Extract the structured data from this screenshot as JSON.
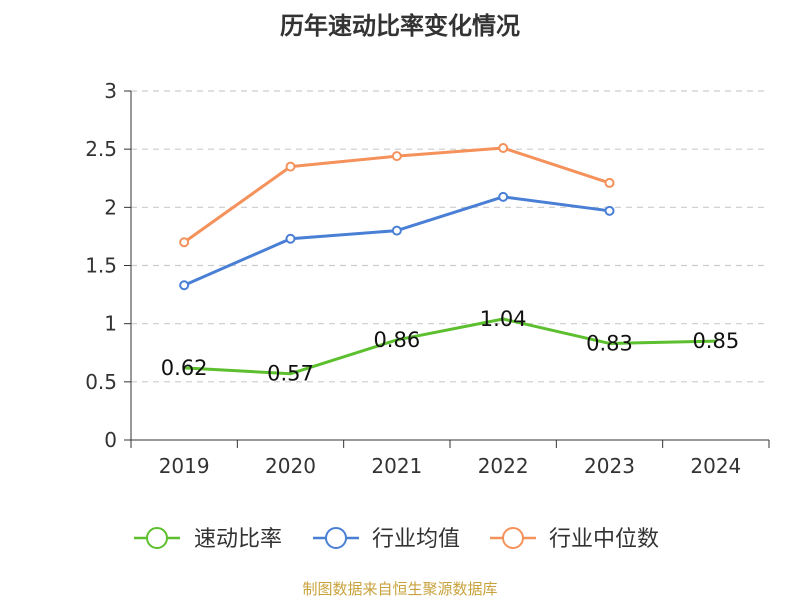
{
  "chart_data": {
    "type": "line",
    "title": "历年速动比率变化情况",
    "categories": [
      "2019",
      "2020",
      "2021",
      "2022",
      "2023",
      "2024"
    ],
    "ylim": [
      0,
      3
    ],
    "yticks": [
      "0",
      "0.5",
      "1",
      "1.5",
      "2",
      "2.5",
      "3"
    ],
    "grid": "horizontal dashed",
    "legend_position": "bottom",
    "series": [
      {
        "name": "速动比率",
        "values": [
          0.62,
          0.57,
          0.86,
          1.04,
          0.83,
          0.85
        ],
        "color": "#5cbf2e",
        "labels": [
          "0.62",
          "0.57",
          "0.86",
          "1.04",
          "0.83",
          "0.85"
        ]
      },
      {
        "name": "行业均值",
        "values": [
          1.33,
          1.73,
          1.8,
          2.09,
          1.97,
          null
        ],
        "color": "#4a7fd6"
      },
      {
        "name": "行业中位数",
        "values": [
          1.7,
          2.35,
          2.44,
          2.51,
          2.21,
          null
        ],
        "color": "#f5915a"
      }
    ]
  },
  "footer": {
    "source": "制图数据来自恒生聚源数据库",
    "color": "#c8a23c"
  }
}
